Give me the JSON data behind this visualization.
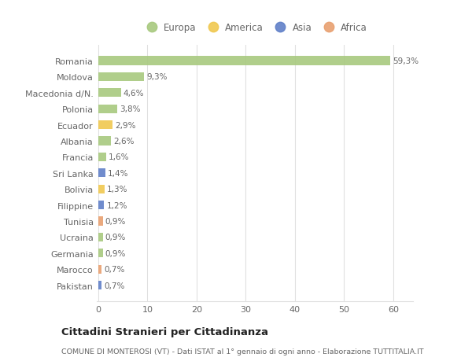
{
  "countries": [
    "Romania",
    "Moldova",
    "Macedonia d/N.",
    "Polonia",
    "Ecuador",
    "Albania",
    "Francia",
    "Sri Lanka",
    "Bolivia",
    "Filippine",
    "Tunisia",
    "Ucraina",
    "Germania",
    "Marocco",
    "Pakistan"
  ],
  "values": [
    59.3,
    9.3,
    4.6,
    3.8,
    2.9,
    2.6,
    1.6,
    1.4,
    1.3,
    1.2,
    0.9,
    0.9,
    0.9,
    0.7,
    0.7
  ],
  "labels": [
    "59,3%",
    "9,3%",
    "4,6%",
    "3,8%",
    "2,9%",
    "2,6%",
    "1,6%",
    "1,4%",
    "1,3%",
    "1,2%",
    "0,9%",
    "0,9%",
    "0,9%",
    "0,7%",
    "0,7%"
  ],
  "continents": [
    "Europa",
    "Europa",
    "Europa",
    "Europa",
    "America",
    "Europa",
    "Europa",
    "Asia",
    "America",
    "Asia",
    "Africa",
    "Europa",
    "Europa",
    "Africa",
    "Asia"
  ],
  "continent_colors": {
    "Europa": "#a8c97f",
    "America": "#f0c850",
    "Asia": "#6080c8",
    "Africa": "#e8a070"
  },
  "legend_order": [
    "Europa",
    "America",
    "Asia",
    "Africa"
  ],
  "bg_color": "#ffffff",
  "grid_color": "#e0e0e0",
  "title": "Cittadini Stranieri per Cittadinanza",
  "subtitle": "COMUNE DI MONTEROSI (VT) - Dati ISTAT al 1° gennaio di ogni anno - Elaborazione TUTTITALIA.IT",
  "xlabel_ticks": [
    0,
    10,
    20,
    30,
    40,
    50,
    60
  ],
  "xlim": [
    -0.3,
    64
  ]
}
